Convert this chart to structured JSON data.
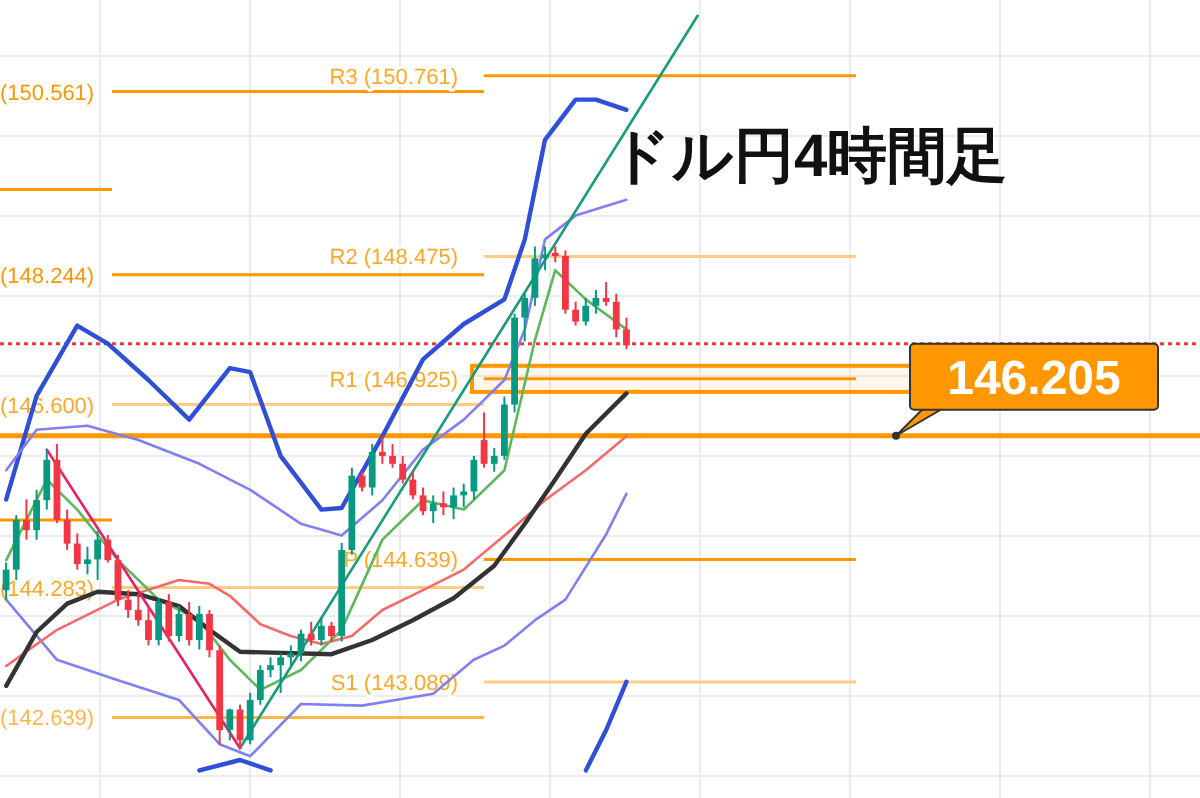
{
  "chart_data": {
    "type": "candlestick",
    "title": "ドル円4時間足",
    "categories": [
      null,
      null,
      null,
      null,
      null,
      null,
      null,
      null,
      null,
      null,
      null,
      null,
      null,
      null,
      null,
      null,
      null,
      null,
      null,
      null,
      null,
      null,
      null,
      null,
      null,
      null,
      null,
      null,
      null,
      null,
      null,
      null,
      null,
      null,
      null,
      null,
      null,
      null,
      null,
      null,
      null,
      null,
      null,
      null,
      null,
      null,
      null,
      null,
      null,
      null,
      null,
      null,
      null,
      null,
      null,
      null,
      null,
      null,
      null,
      null,
      null,
      null,
      null,
      null,
      null,
      null,
      null,
      null,
      null,
      null,
      null,
      null,
      null,
      null,
      null,
      null,
      null,
      null,
      null,
      null,
      null,
      null,
      null,
      null,
      null,
      null,
      null,
      null,
      null,
      null,
      null,
      null,
      null,
      null,
      null,
      null,
      null,
      null,
      null,
      null,
      null,
      null,
      null,
      null,
      null,
      null,
      null,
      null,
      null,
      null,
      null,
      null,
      null,
      null,
      null,
      null,
      null,
      null
    ],
    "ohlc": [
      [
        144.25,
        144.6,
        144.13,
        144.51
      ],
      [
        144.51,
        145.2,
        144.38,
        145.14
      ],
      [
        145.14,
        145.4,
        144.89,
        145.01
      ],
      [
        145.01,
        145.52,
        144.89,
        145.39
      ],
      [
        145.39,
        146.03,
        145.27,
        145.9
      ],
      [
        145.9,
        146.1,
        145.1,
        145.14
      ],
      [
        145.14,
        145.27,
        144.76,
        144.84
      ],
      [
        144.84,
        144.97,
        144.51,
        144.58
      ],
      [
        144.58,
        144.8,
        144.45,
        144.64
      ],
      [
        144.64,
        145.0,
        144.38,
        144.89
      ],
      [
        144.89,
        144.95,
        144.6,
        144.63
      ],
      [
        144.63,
        144.7,
        144.05,
        144.13
      ],
      [
        144.13,
        144.25,
        143.9,
        144.0
      ],
      [
        144.0,
        144.2,
        143.8,
        143.87
      ],
      [
        143.87,
        144.05,
        143.55,
        143.62
      ],
      [
        143.62,
        144.15,
        143.55,
        144.1
      ],
      [
        144.1,
        144.2,
        143.6,
        143.67
      ],
      [
        143.67,
        144.05,
        143.6,
        143.95
      ],
      [
        143.95,
        144.1,
        143.55,
        143.62
      ],
      [
        143.62,
        144.05,
        143.5,
        143.95
      ],
      [
        143.95,
        144.0,
        143.4,
        143.49
      ],
      [
        143.49,
        143.55,
        142.3,
        142.48
      ],
      [
        142.48,
        142.75,
        142.35,
        142.74
      ],
      [
        142.74,
        142.8,
        142.25,
        142.35
      ],
      [
        142.35,
        142.95,
        142.3,
        142.86
      ],
      [
        142.86,
        143.3,
        142.8,
        143.24
      ],
      [
        143.24,
        143.4,
        143.15,
        143.3
      ],
      [
        143.3,
        143.45,
        142.95,
        143.4
      ],
      [
        143.4,
        143.55,
        143.3,
        143.45
      ],
      [
        143.45,
        143.75,
        143.35,
        143.7
      ],
      [
        143.7,
        143.85,
        143.55,
        143.62
      ],
      [
        143.62,
        143.9,
        143.55,
        143.8
      ],
      [
        143.8,
        143.85,
        143.6,
        143.67
      ],
      [
        143.67,
        144.85,
        143.6,
        144.76
      ],
      [
        144.76,
        145.8,
        144.7,
        145.7
      ],
      [
        145.7,
        145.75,
        145.5,
        145.55
      ],
      [
        145.55,
        146.1,
        145.45,
        146.0
      ],
      [
        146.0,
        146.2,
        145.85,
        145.95
      ],
      [
        145.95,
        146.1,
        145.8,
        145.85
      ],
      [
        145.85,
        145.95,
        145.6,
        145.65
      ],
      [
        145.65,
        145.75,
        145.4,
        145.45
      ],
      [
        145.45,
        145.55,
        145.2,
        145.25
      ],
      [
        145.25,
        145.45,
        145.1,
        145.35
      ],
      [
        145.35,
        145.5,
        145.2,
        145.3
      ],
      [
        145.3,
        145.55,
        145.15,
        145.45
      ],
      [
        145.45,
        145.6,
        145.3,
        145.5
      ],
      [
        145.5,
        145.95,
        145.4,
        145.9
      ],
      [
        146.15,
        146.5,
        145.8,
        145.85
      ],
      [
        145.85,
        146.05,
        145.75,
        145.95
      ],
      [
        145.95,
        146.7,
        145.9,
        146.6
      ],
      [
        146.6,
        147.75,
        146.5,
        147.7
      ],
      [
        147.7,
        148.0,
        147.4,
        147.95
      ],
      [
        147.95,
        148.6,
        147.85,
        148.45
      ],
      [
        148.45,
        148.6,
        148.3,
        148.5
      ],
      [
        148.52,
        148.6,
        148.4,
        148.48
      ],
      [
        148.48,
        148.55,
        147.75,
        147.8
      ],
      [
        147.8,
        147.9,
        147.6,
        147.65
      ],
      [
        147.65,
        147.95,
        147.6,
        147.85
      ],
      [
        147.85,
        148.05,
        147.75,
        147.95
      ],
      [
        147.95,
        148.15,
        147.85,
        147.9
      ],
      [
        147.9,
        148.0,
        147.45,
        147.55
      ],
      [
        147.55,
        147.7,
        147.3,
        147.35
      ],
      null,
      null,
      null,
      null,
      null,
      null,
      null,
      null,
      null,
      null,
      null,
      null,
      null,
      null,
      null,
      null,
      null,
      null,
      null,
      null,
      null,
      null,
      null,
      null,
      null,
      null,
      null,
      null,
      null,
      null,
      null,
      null,
      null,
      null,
      null,
      null,
      null,
      null,
      null,
      null,
      null,
      null,
      null,
      null,
      null,
      null,
      null,
      null,
      null,
      null,
      null,
      null,
      null,
      null,
      null,
      null
    ],
    "series": [
      {
        "type": "line",
        "color": "#2f4fd8",
        "values": [
          145.4,
          null,
          null,
          146.71,
          null,
          null,
          null,
          147.6,
          null,
          null,
          147.37,
          null,
          null,
          null,
          146.91,
          null,
          null,
          null,
          146.41,
          null,
          null,
          null,
          147.06,
          null,
          147.01,
          null,
          null,
          145.95,
          null,
          null,
          null,
          145.27,
          null,
          145.29,
          null,
          null,
          null,
          146.2,
          null,
          null,
          null,
          147.17,
          null,
          null,
          null,
          147.62,
          null,
          null,
          null,
          147.93,
          null,
          148.69,
          null,
          149.95,
          null,
          null,
          150.46,
          null,
          150.46,
          null,
          null,
          150.33,
          null,
          null,
          null,
          null,
          null,
          null,
          null,
          null,
          null,
          null,
          null,
          null,
          null,
          null,
          null,
          null,
          null,
          null,
          null,
          null,
          null,
          null,
          null,
          null,
          null,
          null,
          null,
          null,
          null,
          null,
          null,
          null,
          null,
          null,
          null,
          null,
          null,
          null,
          null,
          null,
          null,
          null,
          null,
          null,
          null,
          null,
          null,
          null,
          null,
          null,
          null,
          null,
          null,
          null,
          null,
          null
        ]
      },
      {
        "type": "line",
        "color": "#2f4fd8",
        "values": [
          null,
          null,
          null,
          null,
          null,
          null,
          null,
          null,
          null,
          null,
          null,
          null,
          null,
          null,
          null,
          null,
          null,
          null,
          null,
          141.97,
          null,
          null,
          null,
          142.1,
          null,
          null,
          141.97,
          null,
          null,
          null,
          null,
          null,
          null,
          null,
          null,
          null,
          null,
          null,
          null,
          null,
          null,
          null,
          null,
          null,
          null,
          null,
          null,
          null,
          null,
          null,
          null,
          null,
          null,
          null,
          null,
          null,
          null,
          null,
          null,
          null,
          null,
          null,
          null,
          null,
          null,
          null,
          null,
          null,
          null,
          null,
          null,
          null,
          null,
          null,
          null,
          null,
          null,
          null,
          null,
          null,
          null,
          null,
          null,
          null,
          null,
          null,
          null,
          null,
          null,
          null,
          null,
          null,
          null,
          null,
          null,
          null,
          null,
          null,
          null,
          null,
          null,
          null,
          null,
          null,
          null,
          null,
          null,
          null,
          null,
          null,
          null,
          null,
          null,
          null,
          null,
          null,
          null,
          null
        ]
      },
      {
        "type": "line",
        "color": "#2f4fd8",
        "values": [
          null,
          null,
          null,
          null,
          null,
          null,
          null,
          null,
          null,
          null,
          null,
          null,
          null,
          null,
          null,
          null,
          null,
          null,
          null,
          null,
          null,
          null,
          null,
          null,
          null,
          null,
          null,
          null,
          null,
          null,
          null,
          null,
          null,
          null,
          null,
          null,
          null,
          null,
          null,
          null,
          null,
          null,
          null,
          null,
          null,
          null,
          null,
          null,
          null,
          null,
          null,
          null,
          null,
          null,
          null,
          null,
          null,
          141.97,
          null,
          142.48,
          null,
          143.09,
          null,
          null,
          null,
          null,
          null,
          null,
          null,
          null,
          null,
          null,
          null,
          null,
          null,
          null,
          null,
          null,
          null,
          null,
          null,
          null,
          null,
          null,
          null,
          null,
          null,
          null,
          null,
          null,
          null,
          null,
          null,
          null,
          null,
          null,
          null,
          null,
          null,
          null,
          null,
          null,
          null,
          null,
          null,
          null,
          null,
          null,
          null,
          null,
          null,
          null,
          null,
          null,
          null,
          null,
          null,
          null
        ]
      },
      {
        "type": "line",
        "color": "#8080f0",
        "values": [
          145.77,
          null,
          null,
          146.28,
          null,
          null,
          null,
          null,
          146.33,
          null,
          null,
          null,
          null,
          146.15,
          null,
          null,
          null,
          null,
          null,
          145.85,
          null,
          null,
          null,
          null,
          145.52,
          null,
          null,
          null,
          null,
          145.09,
          null,
          null,
          null,
          144.94,
          null,
          null,
          null,
          145.39,
          null,
          null,
          null,
          146.03,
          null,
          null,
          null,
          146.41,
          null,
          null,
          null,
          146.91,
          null,
          147.55,
          null,
          148.69,
          null,
          null,
          148.99,
          null,
          null,
          null,
          null,
          149.19,
          null,
          null,
          null,
          null,
          null,
          null,
          null,
          null,
          null,
          null,
          null,
          null,
          null,
          null,
          null,
          null,
          null,
          null,
          null,
          null,
          null,
          null,
          null,
          null,
          null,
          null,
          null,
          null,
          null,
          null,
          null,
          null,
          null,
          null,
          null,
          null,
          null,
          null,
          null,
          null,
          null,
          null,
          null,
          null,
          null,
          null,
          null,
          null,
          null,
          null,
          null,
          null,
          null,
          null,
          null,
          null
        ]
      },
      {
        "type": "line",
        "color": "#8080f0",
        "values": [
          144.13,
          null,
          null,
          null,
          null,
          143.37,
          null,
          null,
          null,
          null,
          null,
          143.11,
          null,
          null,
          null,
          null,
          null,
          142.86,
          null,
          null,
          null,
          142.3,
          null,
          null,
          142.15,
          null,
          null,
          null,
          null,
          142.81,
          null,
          null,
          null,
          null,
          null,
          142.79,
          null,
          null,
          null,
          null,
          null,
          null,
          142.94,
          null,
          null,
          null,
          143.37,
          null,
          null,
          143.55,
          null,
          null,
          143.87,
          null,
          null,
          144.13,
          null,
          null,
          null,
          144.96,
          null,
          145.47,
          null,
          null,
          null,
          null,
          null,
          null,
          null,
          null,
          null,
          null,
          null,
          null,
          null,
          null,
          null,
          null,
          null,
          null,
          null,
          null,
          null,
          null,
          null,
          null,
          null,
          null,
          null,
          null,
          null,
          null,
          null,
          null,
          null,
          null,
          null,
          null,
          null,
          null,
          null,
          null,
          null,
          null,
          null,
          null,
          null,
          null,
          null,
          null,
          null,
          null,
          null,
          null,
          null,
          null,
          null,
          null
        ]
      },
      {
        "type": "line",
        "color": "#f26b6b",
        "values": [
          143.29,
          null,
          null,
          null,
          null,
          143.75,
          null,
          null,
          null,
          null,
          null,
          144.13,
          null,
          null,
          null,
          null,
          null,
          144.38,
          null,
          null,
          144.33,
          null,
          144.18,
          null,
          null,
          143.82,
          null,
          null,
          143.67,
          null,
          null,
          143.57,
          null,
          null,
          143.67,
          null,
          null,
          144.0,
          null,
          null,
          null,
          144.25,
          null,
          null,
          null,
          144.51,
          null,
          null,
          null,
          144.94,
          null,
          null,
          null,
          145.39,
          null,
          null,
          null,
          145.77,
          null,
          null,
          null,
          146.2,
          null,
          null,
          null,
          null,
          null,
          null,
          null,
          null,
          null,
          null,
          null,
          null,
          null,
          null,
          null,
          null,
          null,
          null,
          null,
          null,
          null,
          null,
          null,
          null,
          null,
          null,
          null,
          null,
          null,
          null,
          null,
          null,
          null,
          null,
          null,
          null,
          null,
          null,
          null,
          null,
          null,
          null,
          null,
          null,
          null,
          null,
          null,
          null,
          null,
          null,
          null,
          null,
          null,
          null,
          null,
          null
        ]
      },
      {
        "type": "line",
        "color": "#5cb85c",
        "values": [
          144.63,
          null,
          null,
          null,
          145.65,
          null,
          null,
          145.27,
          null,
          null,
          null,
          144.63,
          null,
          null,
          null,
          144.13,
          null,
          null,
          null,
          143.87,
          null,
          null,
          143.37,
          null,
          null,
          142.99,
          null,
          null,
          null,
          143.24,
          null,
          null,
          null,
          143.75,
          null,
          null,
          null,
          144.89,
          null,
          null,
          null,
          145.39,
          null,
          null,
          null,
          145.27,
          null,
          null,
          null,
          145.77,
          null,
          null,
          147.42,
          null,
          148.3,
          null,
          null,
          147.93,
          null,
          null,
          null,
          147.55,
          null,
          null,
          null,
          null,
          null,
          null,
          null,
          null,
          null,
          null,
          null,
          null,
          null,
          null,
          null,
          null,
          null,
          null,
          null,
          null,
          null,
          null,
          null,
          null,
          null,
          null,
          null,
          null,
          null,
          null,
          null,
          null,
          null,
          null,
          null,
          null,
          null,
          null,
          null,
          null,
          null,
          null,
          null,
          null,
          null,
          null,
          null,
          null,
          null,
          null,
          null,
          null,
          null,
          null,
          null,
          null
        ]
      },
      {
        "type": "line",
        "color": "#333333",
        "values": [
          143.04,
          null,
          null,
          143.72,
          null,
          null,
          144.08,
          null,
          null,
          144.23,
          null,
          null,
          null,
          144.2,
          null,
          null,
          null,
          144.05,
          null,
          null,
          143.75,
          null,
          null,
          143.47,
          null,
          null,
          null,
          null,
          null,
          null,
          null,
          null,
          143.44,
          null,
          null,
          null,
          143.62,
          null,
          null,
          null,
          143.87,
          null,
          null,
          null,
          144.15,
          null,
          null,
          null,
          144.56,
          null,
          null,
          145.09,
          null,
          null,
          145.65,
          null,
          null,
          146.23,
          null,
          null,
          null,
          146.74,
          null,
          null,
          null,
          null,
          null,
          null,
          null,
          null,
          null,
          null,
          null,
          null,
          null,
          null,
          null,
          null,
          null,
          null,
          null,
          null,
          null,
          null,
          null,
          null,
          null,
          null,
          null,
          null,
          null,
          null,
          null,
          null,
          null,
          null,
          null,
          null,
          null,
          null,
          null,
          null,
          null,
          null,
          null,
          null,
          null,
          null,
          null,
          null,
          null,
          null,
          null,
          null,
          null,
          null,
          null,
          null
        ]
      },
      {
        "type": "line",
        "color": "#e91e63",
        "values": [
          null,
          null,
          null,
          null,
          146.03,
          null,
          null,
          null,
          null,
          null,
          null,
          null,
          null,
          null,
          null,
          null,
          null,
          null,
          null,
          null,
          null,
          null,
          null,
          142.25,
          null,
          null,
          null,
          null,
          null,
          null,
          null,
          null,
          null,
          null,
          null,
          null,
          null,
          null,
          null,
          null,
          null,
          null,
          null,
          null,
          null,
          null,
          null,
          null,
          null,
          null,
          null,
          null,
          null,
          null,
          null,
          null,
          null,
          null,
          null,
          null,
          null,
          null,
          null,
          null,
          null,
          null,
          null,
          null,
          null,
          null,
          null,
          null,
          null,
          null,
          null,
          null,
          null,
          null,
          null,
          null,
          null,
          null,
          null,
          null,
          null,
          null,
          null,
          null,
          null,
          null,
          null,
          null,
          null,
          null,
          null,
          null,
          null,
          null,
          null,
          null,
          null,
          null,
          null,
          null,
          null,
          null,
          null,
          null,
          null,
          null,
          null,
          null,
          null,
          null,
          null,
          null,
          null,
          null
        ]
      },
      {
        "type": "line",
        "color": "#1a9b7a",
        "values": [
          null,
          null,
          null,
          null,
          null,
          null,
          null,
          null,
          null,
          null,
          null,
          null,
          null,
          null,
          null,
          null,
          null,
          null,
          null,
          null,
          null,
          null,
          null,
          142.25,
          null,
          null,
          null,
          null,
          null,
          null,
          null,
          null,
          null,
          null,
          null,
          null,
          null,
          null,
          null,
          null,
          null,
          null,
          null,
          null,
          null,
          null,
          null,
          null,
          null,
          null,
          null,
          null,
          null,
          null,
          null,
          null,
          null,
          null,
          null,
          null,
          null,
          null,
          null,
          null,
          null,
          null,
          null,
          null,
          151.52,
          null,
          null,
          null,
          null,
          null,
          null,
          null,
          null,
          null,
          null,
          null,
          null,
          null,
          null,
          null,
          null,
          null,
          null,
          null,
          null,
          null,
          null,
          null,
          null,
          null,
          null,
          null,
          null,
          null,
          null,
          null,
          null,
          null,
          null,
          null,
          null,
          null,
          null,
          null,
          null,
          null,
          null,
          null,
          null,
          null,
          null,
          null,
          null,
          null
        ]
      }
    ],
    "ylim": [
      141.62,
      151.72
    ],
    "grid": true,
    "ref_lines": [
      {
        "axis": "y",
        "value": 150.561,
        "label": "(150.561)",
        "color": "#ff9800"
      },
      {
        "axis": "y",
        "value": 148.244,
        "label": "(148.244)",
        "color": "#ff9800"
      },
      {
        "axis": "y",
        "value": 146.6,
        "label": "(146.600)",
        "color": "#ffcc80"
      },
      {
        "axis": "y",
        "value": 144.283,
        "label": "(144.283)",
        "color": "#ffcc80"
      },
      {
        "axis": "y",
        "value": 142.639,
        "label": "(142.639)",
        "color": "#ffb74d"
      },
      {
        "axis": "y",
        "value": 149.32,
        "label": null,
        "color": "#ff9800"
      },
      {
        "axis": "y",
        "value": 145.14,
        "label": null,
        "color": "#ff9800"
      },
      {
        "axis": "y",
        "value": 150.761,
        "label": "R3 (150.761)",
        "color": "#ff9800"
      },
      {
        "axis": "y",
        "value": 148.475,
        "label": "R2 (148.475)",
        "color": "#ffcc80"
      },
      {
        "axis": "y",
        "value": 146.925,
        "label": "R1 (146.925)",
        "color": "#ff9800"
      },
      {
        "axis": "y",
        "value": 144.639,
        "label": "P (144.639)",
        "color": "#ff9800"
      },
      {
        "axis": "y",
        "value": 143.089,
        "label": "S1 (143.089)",
        "color": "#ffcc80"
      },
      {
        "axis": "y",
        "value": 146.205,
        "label": "146.205",
        "color": "#ff9800"
      },
      {
        "axis": "y",
        "value": 147.37,
        "label": null,
        "color": "#f23645",
        "line_style": "dotted"
      }
    ],
    "bands": [
      {
        "axis": "y",
        "from": 146.76,
        "to": 147.09,
        "label": null,
        "color": "#ff9800"
      }
    ]
  }
}
